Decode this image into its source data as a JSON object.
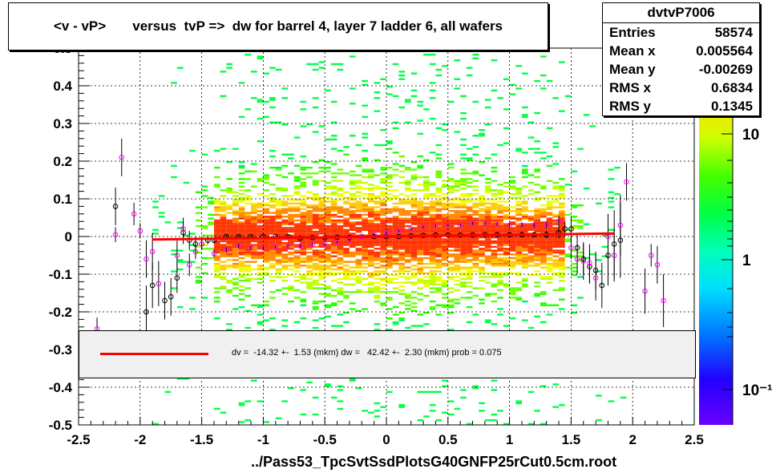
{
  "title": "<v - vP>       versus  tvP =>  dw for barrel 4, layer 7 ladder 6, all wafers",
  "stats": {
    "name": "dvtvP7006",
    "rows": [
      {
        "label": "Entries",
        "value": "58574"
      },
      {
        "label": "Mean x",
        "value": "0.005564"
      },
      {
        "label": "Mean y",
        "value": "-0.00269"
      },
      {
        "label": "RMS x",
        "value": "0.6834"
      },
      {
        "label": "RMS y",
        "value": "0.1345"
      }
    ]
  },
  "fit_legend": "dv =  -14.32 +-  1.53 (mkm) dw =   42.42 +-  2.30 (mkm) prob = 0.075",
  "footer": "../Pass53_TpcSvtSsdPlotsG40GNFP25rCut0.5cm.root",
  "colors": {
    "fit_line": "#ff0000",
    "profile_black": "#000000",
    "profile_magenta": "#ff00ff"
  },
  "chart_data": {
    "type": "heatmap",
    "xlim": [
      -2.5,
      2.5
    ],
    "ylim": [
      -0.5,
      0.5
    ],
    "grid": true,
    "x_ticks": [
      "-2.5",
      "-2",
      "-1.5",
      "-1",
      "-0.5",
      "0",
      "0.5",
      "1",
      "1.5",
      "2",
      "2.5"
    ],
    "y_ticks": [
      "-0.5",
      "-0.4",
      "-0.3",
      "-0.2",
      "-0.1",
      "0",
      "0.1",
      "0.2",
      "0.3",
      "0.4",
      "0.5"
    ],
    "z_ticks": [
      "10",
      "1",
      "10⁻¹"
    ],
    "fit_line": {
      "x": [
        -1.9,
        1.85
      ],
      "y": [
        -0.008,
        0.008
      ]
    },
    "profile_black": {
      "x": [
        -2.2,
        -1.95,
        -1.9,
        -1.8,
        -1.75,
        -1.7,
        -1.65,
        -1.6,
        -1.55,
        -1.5,
        -1.45,
        -1.4,
        -1.3,
        -1.2,
        -1.1,
        -1.0,
        -0.9,
        -0.8,
        -0.7,
        -0.6,
        -0.5,
        -0.4,
        -0.3,
        -0.2,
        -0.1,
        0.0,
        0.1,
        0.2,
        0.3,
        0.4,
        0.5,
        0.6,
        0.7,
        0.8,
        0.9,
        1.0,
        1.1,
        1.2,
        1.3,
        1.4,
        1.45,
        1.5,
        1.55,
        1.6,
        1.65,
        1.7,
        1.75,
        1.8,
        1.85,
        1.9
      ],
      "y": [
        0.08,
        -0.2,
        -0.13,
        -0.17,
        -0.16,
        -0.11,
        0.01,
        -0.01,
        -0.02,
        -0.02,
        -0.01,
        -0.01,
        0.0,
        0.0,
        0.0,
        0.0,
        0.0,
        0.0,
        -0.005,
        -0.003,
        -0.003,
        -0.002,
        -0.002,
        0.0,
        0.0,
        0.0,
        0.0,
        0.002,
        0.003,
        0.004,
        0.004,
        0.004,
        0.004,
        0.005,
        0.005,
        0.005,
        0.005,
        0.005,
        0.005,
        0.01,
        0.02,
        0.02,
        -0.03,
        -0.06,
        -0.08,
        -0.09,
        -0.13,
        -0.05,
        -0.02,
        -0.01
      ],
      "err": [
        0.05,
        0.07,
        0.06,
        0.05,
        0.05,
        0.04,
        0.03,
        0.025,
        0.02,
        0.015,
        0.01,
        0.008,
        0.005,
        0.004,
        0.003,
        0.003,
        0.003,
        0.003,
        0.003,
        0.003,
        0.003,
        0.003,
        0.003,
        0.003,
        0.003,
        0.003,
        0.003,
        0.003,
        0.003,
        0.003,
        0.003,
        0.003,
        0.003,
        0.003,
        0.004,
        0.004,
        0.005,
        0.006,
        0.01,
        0.015,
        0.02,
        0.03,
        0.035,
        0.04,
        0.045,
        0.05,
        0.06,
        0.08,
        0.09,
        0.1
      ]
    },
    "profile_magenta": {
      "x": [
        -2.35,
        -2.2,
        -2.15,
        -2.05,
        -2.0,
        -1.95,
        -1.9,
        -1.85,
        -1.7,
        -1.65,
        -1.6,
        -1.55,
        -1.5,
        -1.4,
        -1.3,
        -1.2,
        -1.1,
        -1.0,
        -0.9,
        -0.8,
        -0.7,
        -0.6,
        -0.5,
        -0.4,
        -0.3,
        -0.2,
        -0.1,
        0.0,
        0.1,
        0.2,
        0.3,
        0.4,
        0.5,
        0.6,
        0.7,
        0.8,
        0.9,
        1.0,
        1.1,
        1.2,
        1.3,
        1.4,
        1.5,
        1.55,
        1.6,
        1.65,
        1.7,
        1.8,
        1.85,
        1.9,
        1.95,
        2.1,
        2.15,
        2.2,
        2.25
      ],
      "y": [
        -0.245,
        0.005,
        0.21,
        0.06,
        0.015,
        -0.06,
        -0.04,
        -0.125,
        -0.05,
        0.02,
        -0.075,
        -0.04,
        -0.02,
        -0.045,
        -0.035,
        -0.025,
        -0.03,
        -0.03,
        -0.028,
        -0.025,
        -0.025,
        -0.022,
        -0.02,
        -0.015,
        -0.01,
        0.0,
        0.005,
        0.01,
        0.015,
        0.02,
        0.025,
        0.028,
        0.03,
        0.03,
        0.035,
        0.035,
        0.033,
        0.03,
        0.03,
        0.03,
        0.03,
        0.04,
        -0.03,
        -0.06,
        -0.065,
        -0.07,
        -0.11,
        0.0,
        -0.05,
        0.03,
        0.145,
        -0.145,
        -0.05,
        -0.075,
        -0.17
      ],
      "err": [
        0.03,
        0.02,
        0.05,
        0.03,
        0.02,
        0.05,
        0.05,
        0.06,
        0.04,
        0.03,
        0.03,
        0.02,
        0.015,
        0.01,
        0.008,
        0.006,
        0.005,
        0.004,
        0.004,
        0.004,
        0.004,
        0.004,
        0.003,
        0.003,
        0.003,
        0.003,
        0.003,
        0.003,
        0.003,
        0.003,
        0.003,
        0.003,
        0.003,
        0.004,
        0.004,
        0.004,
        0.005,
        0.005,
        0.006,
        0.008,
        0.01,
        0.015,
        0.03,
        0.04,
        0.05,
        0.05,
        0.06,
        0.06,
        0.07,
        0.08,
        0.05,
        0.06,
        0.03,
        0.05,
        0.07
      ]
    }
  }
}
